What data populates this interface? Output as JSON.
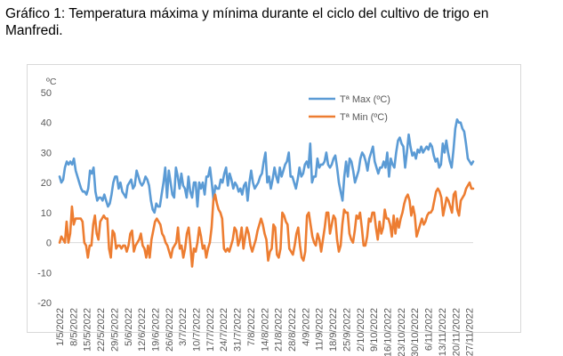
{
  "caption": "Gráfico 1: Temperatura máxima y mínima durante el ciclo del cultivo de trigo en Manfredi.",
  "chart_data": {
    "type": "line",
    "unit_label": "ºC",
    "ylim": [
      -20,
      50
    ],
    "yticks": [
      -20,
      -10,
      0,
      10,
      20,
      30,
      40,
      50
    ],
    "x_tick_labels": [
      "1/5/2022",
      "8/5/2022",
      "15/5/2022",
      "22/5/2022",
      "29/5/2022",
      "5/6/2022",
      "12/6/2022",
      "19/6/2022",
      "26/6/2022",
      "3/7/2022",
      "10/7/2022",
      "17/7/2022",
      "24/7/2022",
      "31/7/2022",
      "7/8/2022",
      "14/8/2022",
      "21/8/2022",
      "28/8/2022",
      "4/9/2022",
      "11/9/2022",
      "18/9/2022",
      "25/9/2022",
      "2/10/2022",
      "9/10/2022",
      "16/10/2022",
      "23/10/2022",
      "30/10/2022",
      "6/11/2022",
      "13/11/2022",
      "20/11/2022",
      "27/11/2022"
    ],
    "x_start": "1/5/2022",
    "x_end": "29/11/2022",
    "grid": false,
    "legend_position": "top-right",
    "series": [
      {
        "name": "Tª Max (ºC)",
        "color": "#5b9bd5",
        "values": [
          22,
          20,
          21,
          25,
          27,
          26,
          27,
          26,
          28,
          24,
          22,
          20,
          18,
          17,
          17,
          16,
          18,
          24,
          23,
          25,
          17,
          14,
          15,
          15,
          14,
          16,
          14,
          12,
          13,
          16,
          20,
          22,
          22,
          18,
          20,
          17,
          16,
          15,
          19,
          20,
          21,
          18,
          19,
          24,
          22,
          20,
          19,
          20,
          22,
          21,
          19,
          14,
          11,
          10,
          13,
          12,
          12,
          16,
          20,
          25,
          15,
          24,
          20,
          16,
          15,
          25,
          22,
          18,
          23,
          19,
          18,
          15,
          22,
          17,
          15,
          20,
          20,
          12,
          20,
          18,
          20,
          16,
          22,
          22,
          25,
          20,
          14,
          19,
          18,
          18,
          21,
          20,
          23,
          25,
          19,
          23,
          21,
          18,
          20,
          19,
          17,
          18,
          16,
          19,
          20,
          14,
          20,
          24,
          20,
          18,
          19,
          20,
          22,
          23,
          27,
          30,
          20,
          22,
          18,
          21,
          25,
          22,
          20,
          25,
          22,
          24,
          26,
          27,
          30,
          22,
          22,
          20,
          18,
          21,
          25,
          22,
          23,
          26,
          27,
          25,
          33,
          20,
          22,
          22,
          28,
          25,
          26,
          26,
          27,
          30,
          26,
          25,
          26,
          28,
          29,
          25,
          20,
          17,
          14,
          22,
          27,
          22,
          28,
          27,
          24,
          20,
          22,
          24,
          28,
          30,
          29,
          27,
          24,
          28,
          30,
          32,
          27,
          25,
          23,
          25,
          25,
          27,
          25,
          30,
          22,
          28,
          26,
          25,
          30,
          34,
          35,
          33,
          32,
          25,
          30,
          36,
          32,
          29,
          30,
          28,
          31,
          30,
          32,
          30,
          31,
          32,
          31,
          33,
          32,
          29,
          27,
          28,
          25,
          26,
          33,
          30,
          34,
          30,
          27,
          25,
          31,
          38,
          41,
          40,
          40,
          38,
          37,
          33,
          28,
          27,
          26,
          27
        ]
      },
      {
        "name": "Tª Min (ºC)",
        "color": "#ed7d31",
        "values": [
          0,
          2,
          1,
          0,
          7,
          0,
          3,
          12,
          6,
          8,
          8,
          8,
          8,
          7,
          0,
          -1,
          -5,
          -1,
          -1,
          6,
          9,
          3,
          1,
          7,
          8,
          9,
          8,
          8,
          -2,
          -5,
          4,
          3,
          -2,
          -1,
          -1,
          -2,
          -1,
          -1,
          -3,
          -1,
          3,
          4,
          -3,
          -1,
          0,
          1,
          3,
          -1,
          -2,
          -5,
          -1,
          -5,
          1,
          4,
          7,
          8,
          7,
          6,
          3,
          2,
          0,
          -1,
          -3,
          -5,
          -2,
          -1,
          0,
          5,
          -2,
          -1,
          -5,
          -2,
          3,
          5,
          -1,
          -8,
          -2,
          -3,
          0,
          5,
          2,
          -2,
          -1,
          -5,
          -2,
          0,
          5,
          14,
          16,
          13,
          11,
          10,
          8,
          -2,
          -3,
          -2,
          -3,
          -1,
          1,
          5,
          4,
          -1,
          1,
          5,
          -2,
          2,
          5,
          3,
          -1,
          -3,
          -1,
          1,
          4,
          6,
          8,
          6,
          3,
          1,
          -6,
          -3,
          -2,
          6,
          5,
          -4,
          -5,
          -2,
          10,
          9,
          7,
          6,
          -2,
          -3,
          -4,
          -1,
          3,
          5,
          -1,
          -5,
          -6,
          -3,
          9,
          10,
          6,
          2,
          0,
          -1,
          3,
          1,
          -3,
          1,
          5,
          10,
          10,
          3,
          6,
          9,
          8,
          1,
          -3,
          -1,
          6,
          11,
          10,
          10,
          3,
          1,
          0,
          4,
          9,
          8,
          10,
          5,
          -1,
          -1,
          2,
          8,
          7,
          10,
          10,
          5,
          1,
          7,
          3,
          5,
          11,
          8,
          8,
          6,
          2,
          9,
          3,
          8,
          5,
          8,
          10,
          13,
          15,
          16,
          14,
          9,
          12,
          9,
          2,
          4,
          6,
          8,
          6,
          7,
          9,
          10,
          10,
          11,
          14,
          17,
          18,
          17,
          15,
          9,
          12,
          15,
          14,
          12,
          10,
          16,
          17,
          11,
          9,
          14,
          15,
          16,
          18,
          19,
          20,
          18,
          18
        ]
      }
    ]
  }
}
